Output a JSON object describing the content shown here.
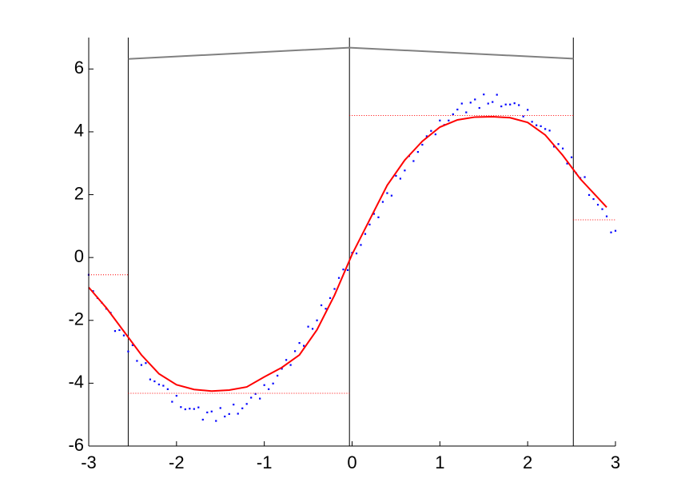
{
  "chart_data": {
    "type": "line",
    "xlim": [
      -3,
      3
    ],
    "ylim": [
      -6,
      7
    ],
    "xticks": [
      -3,
      -2,
      -1,
      0,
      1,
      2,
      3
    ],
    "yticks": [
      -6,
      -4,
      -2,
      0,
      2,
      4,
      6
    ],
    "grid": false,
    "vlines": [
      -2.55,
      -0.03,
      2.52
    ],
    "vline_color": "#000000",
    "series": [
      {
        "style": "dots",
        "color": "#0000ff",
        "x": [
          -3.0,
          -2.9,
          -2.8,
          -2.7,
          -2.6,
          -2.5,
          -2.4,
          -2.3,
          -2.2,
          -2.1,
          -2.0,
          -1.9,
          -1.8,
          -1.7,
          -1.6,
          -1.5,
          -1.4,
          -1.3,
          -1.2,
          -1.1,
          -1.0,
          -0.9,
          -0.8,
          -0.7,
          -0.6,
          -0.5,
          -0.4,
          -0.3,
          -0.2,
          -0.1,
          0.0,
          0.1,
          0.2,
          0.3,
          0.4,
          0.5,
          0.6,
          0.7,
          0.8,
          0.9,
          1.0,
          1.1,
          1.2,
          1.3,
          1.4,
          1.5,
          1.6,
          1.7,
          1.8,
          1.9,
          2.0,
          2.1,
          2.2,
          2.3,
          2.4,
          2.5,
          2.6,
          2.7,
          2.8,
          2.9,
          3.0,
          -2.95,
          -2.85,
          -2.75,
          -2.65,
          -2.55,
          -2.45,
          -2.35,
          -2.25,
          -2.15,
          -2.05,
          -1.95,
          -1.85,
          -1.75,
          -1.65,
          -1.55,
          -1.45,
          -1.35,
          -1.25,
          -1.15,
          -1.05,
          -0.95,
          -0.85,
          -0.75,
          -0.65,
          -0.55,
          -0.45,
          -0.35,
          -0.25,
          -0.15,
          -0.05,
          0.05,
          0.15,
          0.25,
          0.35,
          0.45,
          0.55,
          0.65,
          0.75,
          0.85,
          0.95,
          1.05,
          1.15,
          1.25,
          1.35,
          1.45,
          1.55,
          1.65,
          1.75,
          1.85,
          1.95,
          2.05,
          2.15,
          2.25,
          2.35,
          2.45,
          2.55,
          2.65,
          2.75,
          2.85,
          2.95
        ],
        "values": [
          -0.55,
          -1.29,
          -1.63,
          -2.34,
          -2.48,
          -2.79,
          -3.42,
          -3.88,
          -4.04,
          -4.19,
          -4.4,
          -4.83,
          -4.82,
          -5.16,
          -4.9,
          -4.79,
          -4.98,
          -4.97,
          -4.66,
          -4.34,
          -4.06,
          -4.01,
          -3.54,
          -3.42,
          -2.72,
          -2.2,
          -2.0,
          -1.63,
          -1.0,
          -0.38,
          0.15,
          0.4,
          1.05,
          1.28,
          2.05,
          2.6,
          2.77,
          3.07,
          3.59,
          4.03,
          4.36,
          4.36,
          4.71,
          4.62,
          5.03,
          5.19,
          4.95,
          4.81,
          4.87,
          4.85,
          4.7,
          4.21,
          4.09,
          3.53,
          3.47,
          3.19,
          2.53,
          1.99,
          1.68,
          1.31,
          0.85,
          -1.07,
          -1.44,
          -1.76,
          -2.31,
          -2.99,
          -3.29,
          -3.36,
          -3.94,
          -4.08,
          -4.59,
          -4.76,
          -4.81,
          -4.77,
          -4.93,
          -5.2,
          -5.06,
          -4.68,
          -4.8,
          -4.46,
          -4.49,
          -4.19,
          -3.76,
          -3.26,
          -2.98,
          -2.81,
          -2.27,
          -1.52,
          -1.29,
          -0.65,
          -0.4,
          0.13,
          0.75,
          1.39,
          1.77,
          1.97,
          2.51,
          3.23,
          3.36,
          3.86,
          3.92,
          4.22,
          4.56,
          4.9,
          4.93,
          4.76,
          4.9,
          5.18,
          4.87,
          4.91,
          4.49,
          4.32,
          4.18,
          4.04,
          3.61,
          2.99,
          2.69,
          2.56,
          1.86,
          1.54,
          0.8
        ]
      },
      {
        "style": "solid",
        "color": "#ff0000",
        "x": [
          -3,
          -2.8,
          -2.6,
          -2.4,
          -2.2,
          -2.0,
          -1.8,
          -1.6,
          -1.4,
          -1.2,
          -1.0,
          -0.8,
          -0.6,
          -0.4,
          -0.2,
          0,
          0.2,
          0.4,
          0.6,
          0.8,
          1.0,
          1.2,
          1.4,
          1.6,
          1.8,
          2.0,
          2.2,
          2.4,
          2.6,
          2.8,
          2.9
        ],
        "values": [
          -0.95,
          -1.6,
          -2.35,
          -3.1,
          -3.7,
          -4.05,
          -4.2,
          -4.25,
          -4.22,
          -4.12,
          -3.8,
          -3.5,
          -3.1,
          -2.3,
          -1.2,
          0.1,
          1.2,
          2.3,
          3.1,
          3.7,
          4.15,
          4.38,
          4.47,
          4.48,
          4.45,
          4.3,
          3.9,
          3.25,
          2.5,
          1.9,
          1.6
        ]
      },
      {
        "style": "solid",
        "color": "#808080",
        "x": [
          -2.55,
          -0.03,
          2.52
        ],
        "values": [
          6.32,
          6.68,
          6.33
        ]
      },
      {
        "style": "dotted",
        "color": "#ff0000",
        "x": [
          -3,
          -2.55
        ],
        "values": [
          -0.55,
          -0.55
        ]
      },
      {
        "style": "dotted",
        "color": "#ff0000",
        "x": [
          -2.55,
          -0.03
        ],
        "values": [
          -4.32,
          -4.32
        ]
      },
      {
        "style": "dotted",
        "color": "#ff0000",
        "x": [
          -0.03,
          2.52
        ],
        "values": [
          4.52,
          4.52
        ]
      },
      {
        "style": "dotted",
        "color": "#ff0000",
        "x": [
          2.52,
          3
        ],
        "values": [
          1.2,
          1.2
        ]
      }
    ]
  }
}
